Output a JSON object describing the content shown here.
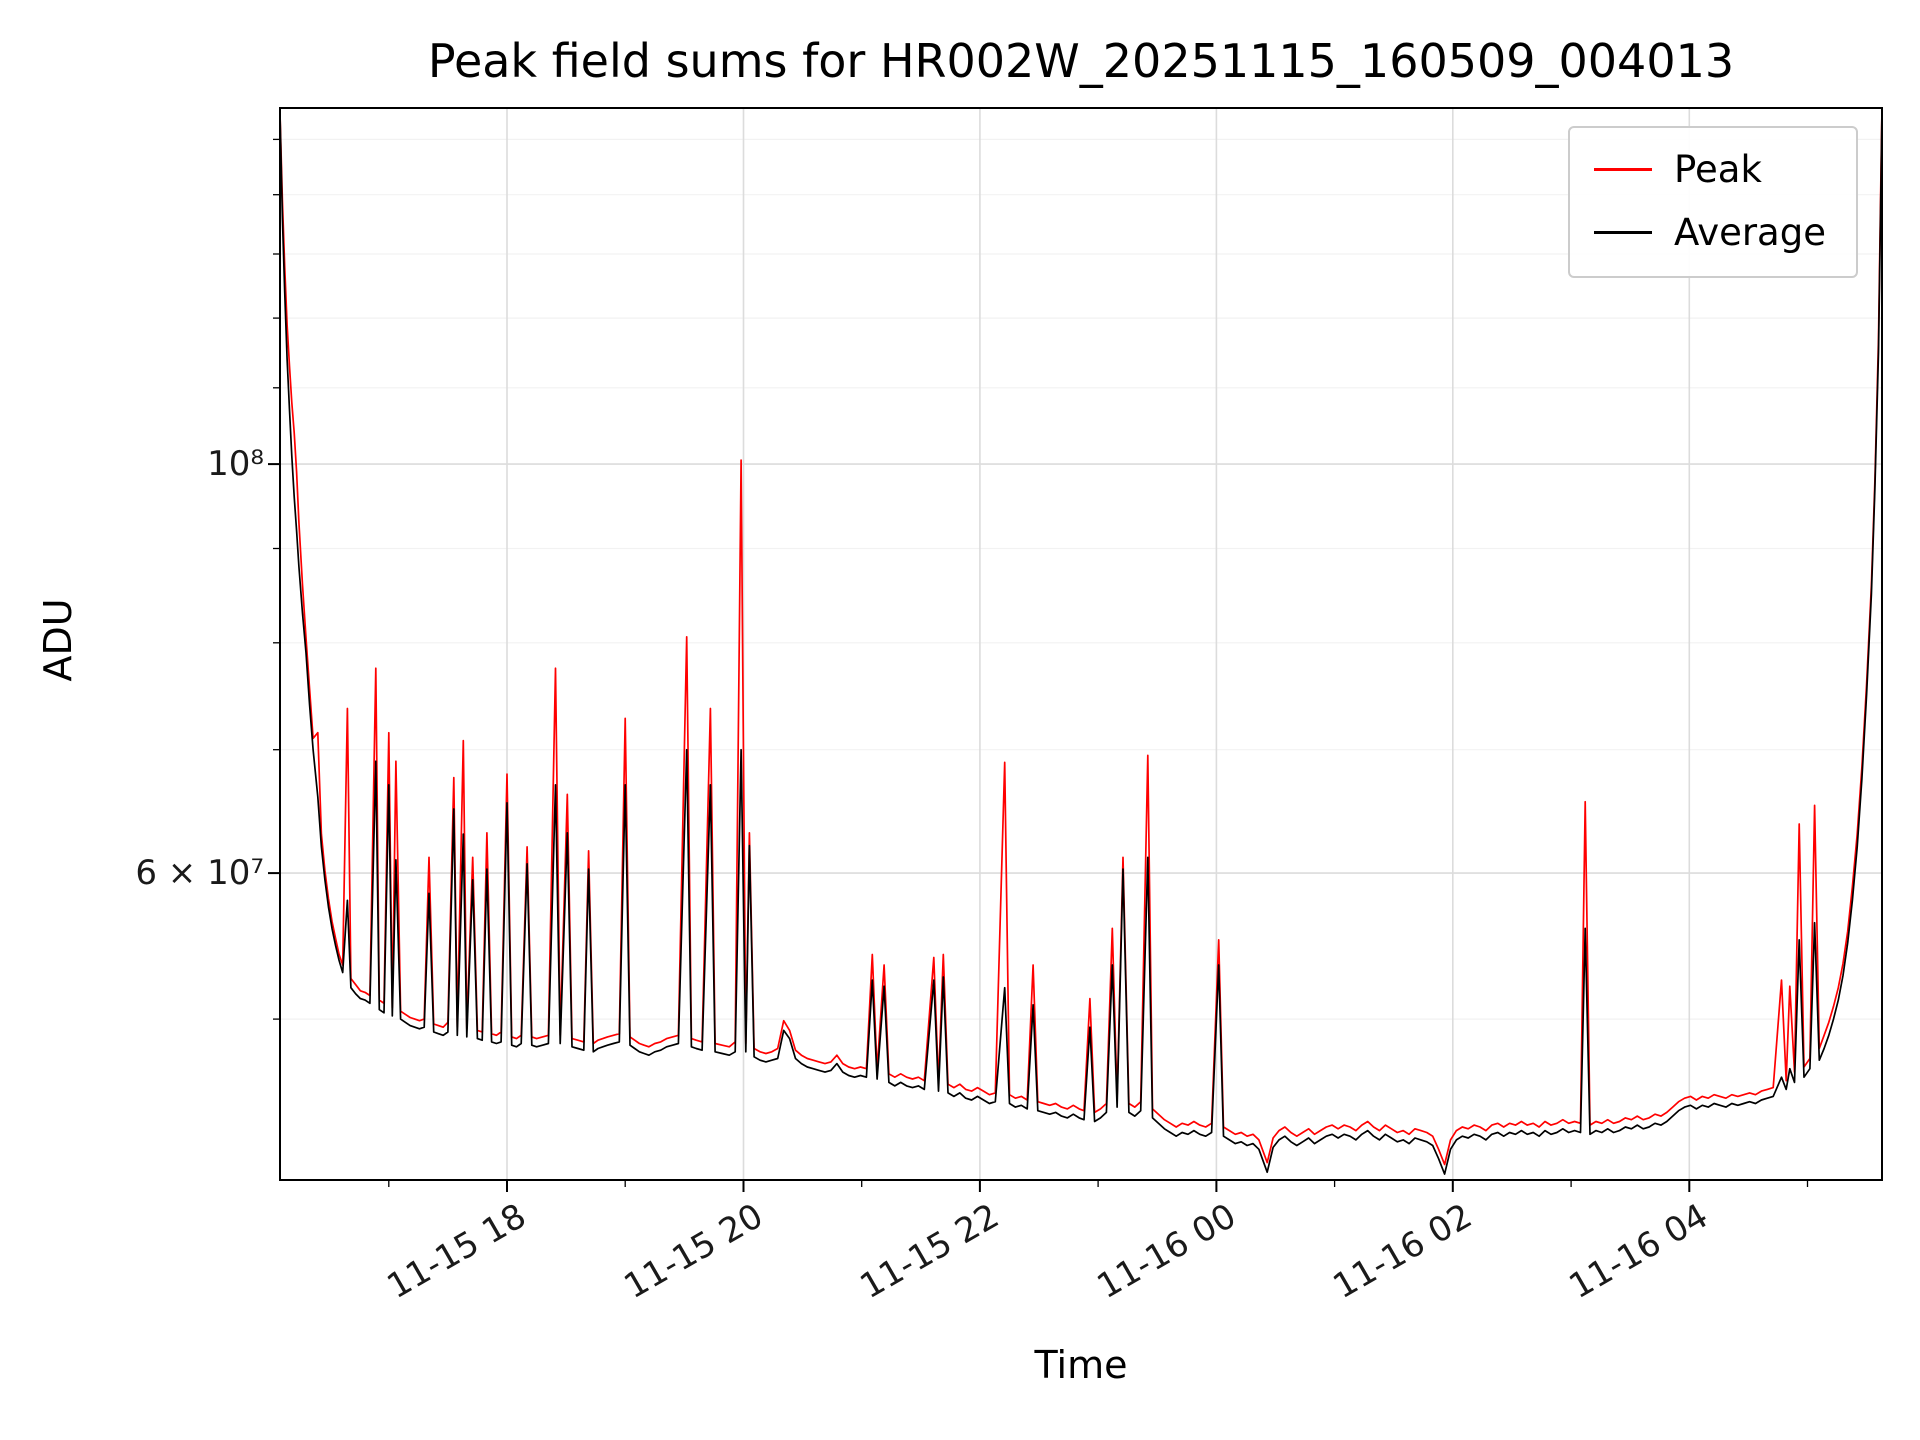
{
  "page": {
    "background": "#ffffff"
  },
  "chart_data": {
    "type": "line",
    "title": "Peak field sums for HR002W_20251115_160509_004013",
    "xlabel": "Time",
    "ylabel": "ADU",
    "yscale": "log",
    "grid": true,
    "legend_position": "upper right",
    "x_unit": "hours since 2025-11-15 00:00",
    "value_unit_scale": 1000000,
    "value_unit": "ADU (series values are in units of 1e6 ADU)",
    "xlim": [
      16.08,
      29.63
    ],
    "ylim": [
      40900000,
      156000000
    ],
    "xticks": [
      {
        "value": 18,
        "label": "11-15 18"
      },
      {
        "value": 20,
        "label": "11-15 20"
      },
      {
        "value": 22,
        "label": "11-15 22"
      },
      {
        "value": 24,
        "label": "11-16 00"
      },
      {
        "value": 26,
        "label": "11-16 02"
      },
      {
        "value": 28,
        "label": "11-16 04"
      }
    ],
    "yticks": [
      {
        "value": 100000000,
        "label": "10⁸"
      },
      {
        "value": 60000000,
        "label": "6 × 10⁷"
      }
    ],
    "xticks_minor": [
      17,
      19,
      21,
      23,
      25,
      27,
      29
    ],
    "yticks_minor": [
      50000000,
      70000000,
      80000000,
      90000000,
      110000000,
      120000000,
      130000000,
      140000000,
      150000000
    ],
    "legend": [
      {
        "label": "Peak",
        "color": "#ff0000"
      },
      {
        "label": "Average",
        "color": "#000000"
      }
    ],
    "x": [
      16.08,
      16.1,
      16.12,
      16.14,
      16.16,
      16.18,
      16.2,
      16.22,
      16.24,
      16.27,
      16.3,
      16.33,
      16.36,
      16.4,
      16.43,
      16.46,
      16.49,
      16.52,
      16.55,
      16.58,
      16.61,
      16.65,
      16.68,
      16.72,
      16.76,
      16.8,
      16.84,
      16.89,
      16.92,
      16.96,
      17.0,
      17.03,
      17.06,
      17.1,
      17.14,
      17.18,
      17.22,
      17.26,
      17.3,
      17.34,
      17.38,
      17.42,
      17.46,
      17.5,
      17.55,
      17.58,
      17.63,
      17.66,
      17.71,
      17.75,
      17.79,
      17.83,
      17.87,
      17.91,
      17.95,
      18.0,
      18.04,
      18.08,
      18.12,
      18.17,
      18.21,
      18.25,
      18.3,
      18.35,
      18.41,
      18.45,
      18.51,
      18.55,
      18.6,
      18.65,
      18.69,
      18.73,
      18.77,
      18.81,
      18.85,
      18.9,
      18.95,
      19.0,
      19.04,
      19.08,
      19.12,
      19.16,
      19.2,
      19.25,
      19.3,
      19.35,
      19.4,
      19.45,
      19.52,
      19.56,
      19.6,
      19.65,
      19.72,
      19.76,
      19.82,
      19.88,
      19.93,
      19.98,
      20.02,
      20.05,
      20.09,
      20.14,
      20.19,
      20.24,
      20.29,
      20.34,
      20.39,
      20.44,
      20.49,
      20.54,
      20.59,
      20.64,
      20.69,
      20.74,
      20.79,
      20.84,
      20.89,
      20.94,
      20.99,
      21.04,
      21.09,
      21.13,
      21.19,
      21.23,
      21.28,
      21.33,
      21.38,
      21.43,
      21.48,
      21.53,
      21.61,
      21.65,
      21.69,
      21.73,
      21.78,
      21.83,
      21.88,
      21.93,
      21.98,
      22.03,
      22.08,
      22.13,
      22.21,
      22.25,
      22.3,
      22.35,
      22.4,
      22.45,
      22.49,
      22.54,
      22.59,
      22.64,
      22.69,
      22.74,
      22.79,
      22.84,
      22.88,
      22.93,
      22.97,
      23.02,
      23.07,
      23.12,
      23.16,
      23.21,
      23.26,
      23.31,
      23.36,
      23.42,
      23.46,
      23.51,
      23.56,
      23.61,
      23.66,
      23.71,
      23.76,
      23.81,
      23.86,
      23.91,
      23.96,
      24.02,
      24.06,
      24.11,
      24.16,
      24.21,
      24.26,
      24.31,
      24.36,
      24.43,
      24.48,
      24.53,
      24.58,
      24.63,
      24.68,
      24.73,
      24.78,
      24.83,
      24.88,
      24.93,
      24.98,
      25.03,
      25.08,
      25.13,
      25.18,
      25.23,
      25.28,
      25.33,
      25.38,
      25.43,
      25.48,
      25.53,
      25.58,
      25.63,
      25.68,
      25.73,
      25.78,
      25.83,
      25.88,
      25.93,
      25.98,
      26.03,
      26.08,
      26.13,
      26.18,
      26.23,
      26.28,
      26.33,
      26.38,
      26.43,
      26.48,
      26.53,
      26.58,
      26.63,
      26.68,
      26.73,
      26.78,
      26.83,
      26.88,
      26.93,
      26.98,
      27.03,
      27.08,
      27.12,
      27.16,
      27.21,
      27.26,
      27.31,
      27.36,
      27.41,
      27.46,
      27.51,
      27.56,
      27.61,
      27.66,
      27.71,
      27.76,
      27.81,
      27.86,
      27.91,
      27.96,
      28.01,
      28.06,
      28.11,
      28.16,
      28.21,
      28.26,
      28.31,
      28.36,
      28.41,
      28.46,
      28.51,
      28.56,
      28.61,
      28.66,
      28.71,
      28.78,
      28.82,
      28.85,
      28.89,
      28.93,
      28.97,
      29.02,
      29.06,
      29.1,
      29.14,
      29.18,
      29.22,
      29.26,
      29.3,
      29.34,
      29.38,
      29.42,
      29.46,
      29.5,
      29.54,
      29.57,
      29.6,
      29.62,
      29.63
    ],
    "series": [
      {
        "name": "Peak",
        "color": "#ff0000",
        "values": [
          155,
          139,
          128,
          119,
          113,
          108,
          104,
          99,
          93,
          86,
          80.5,
          75.5,
          71,
          71.5,
          63,
          60.2,
          58.1,
          56.5,
          55.3,
          54.2,
          53.5,
          73.7,
          52.6,
          52.2,
          51.8,
          51.7,
          51.5,
          77.5,
          51.2,
          51,
          71.5,
          50.7,
          69,
          50.5,
          50.3,
          50.1,
          50,
          49.9,
          50,
          61.2,
          49.7,
          49.6,
          49.5,
          49.8,
          67.6,
          49.5,
          70.8,
          49.4,
          61.2,
          49.3,
          49.2,
          63.1,
          49.1,
          49,
          49.2,
          67.9,
          48.9,
          48.8,
          49,
          62,
          48.9,
          48.8,
          48.9,
          49,
          77.5,
          49,
          66.2,
          48.8,
          48.7,
          48.6,
          61.7,
          48.5,
          48.7,
          48.8,
          48.9,
          49,
          49.1,
          72.8,
          48.9,
          48.7,
          48.5,
          48.4,
          48.3,
          48.5,
          48.6,
          48.8,
          48.9,
          49,
          80.6,
          48.8,
          48.7,
          48.6,
          73.7,
          48.5,
          48.4,
          48.3,
          48.6,
          100.5,
          48.5,
          63.1,
          48.2,
          48,
          47.9,
          48,
          48.2,
          49.9,
          49.3,
          48.1,
          47.8,
          47.6,
          47.5,
          47.4,
          47.3,
          47.4,
          47.8,
          47.3,
          47.1,
          47,
          47.1,
          47,
          54.2,
          46.9,
          53.5,
          46.7,
          46.5,
          46.7,
          46.5,
          46.4,
          46.5,
          46.3,
          54,
          46.2,
          54.2,
          46.1,
          45.9,
          46.1,
          45.8,
          45.7,
          45.9,
          45.7,
          45.5,
          45.6,
          68.9,
          45.5,
          45.3,
          45.4,
          45.2,
          53.5,
          45.1,
          45,
          44.9,
          45,
          44.8,
          44.7,
          44.9,
          44.7,
          44.6,
          51.3,
          44.5,
          44.7,
          45,
          56,
          45.3,
          61.2,
          45,
          44.8,
          45.1,
          69.5,
          44.7,
          44.4,
          44.1,
          43.9,
          43.7,
          43.9,
          43.8,
          44,
          43.8,
          43.7,
          43.9,
          55.2,
          43.7,
          43.5,
          43.3,
          43.4,
          43.2,
          43.3,
          43,
          41.8,
          43.1,
          43.5,
          43.7,
          43.4,
          43.2,
          43.4,
          43.6,
          43.3,
          43.5,
          43.7,
          43.8,
          43.6,
          43.8,
          43.7,
          43.5,
          43.8,
          44,
          43.7,
          43.5,
          43.8,
          43.6,
          43.4,
          43.5,
          43.3,
          43.6,
          43.5,
          43.4,
          43.2,
          42.5,
          41.7,
          43,
          43.5,
          43.7,
          43.6,
          43.8,
          43.7,
          43.5,
          43.8,
          43.9,
          43.7,
          43.9,
          43.8,
          44,
          43.8,
          43.9,
          43.7,
          44,
          43.8,
          43.9,
          44.1,
          43.9,
          44,
          43.9,
          65.6,
          43.8,
          44,
          43.9,
          44.1,
          43.9,
          44,
          44.2,
          44.1,
          44.3,
          44.1,
          44.2,
          44.4,
          44.3,
          44.5,
          44.8,
          45.1,
          45.3,
          45.4,
          45.2,
          45.4,
          45.3,
          45.5,
          45.4,
          45.3,
          45.5,
          45.4,
          45.5,
          45.6,
          45.5,
          45.7,
          45.8,
          45.9,
          52.5,
          46.3,
          52.1,
          46.8,
          63.8,
          47.1,
          47.6,
          65.3,
          48.2,
          49,
          49.8,
          50.8,
          52,
          53.6,
          55.8,
          59,
          63,
          68.5,
          76,
          86,
          98,
          117,
          142,
          156
        ]
      },
      {
        "name": "Average",
        "color": "#000000",
        "values": [
          155,
          136,
          124,
          114,
          107,
          101,
          96,
          92,
          88,
          83,
          79,
          74,
          70,
          66,
          62,
          59.5,
          57.5,
          56,
          54.8,
          53.8,
          53,
          58,
          52,
          51.6,
          51.3,
          51.2,
          51,
          69,
          50.6,
          50.4,
          67,
          50.2,
          61,
          50,
          49.8,
          49.6,
          49.5,
          49.4,
          49.5,
          58.5,
          49.2,
          49.1,
          49,
          49.2,
          65,
          49,
          63,
          48.9,
          59.5,
          48.8,
          48.7,
          60.3,
          48.6,
          48.5,
          48.6,
          65.5,
          48.4,
          48.3,
          48.5,
          60.7,
          48.4,
          48.3,
          48.4,
          48.5,
          67,
          48.5,
          63.1,
          48.3,
          48.2,
          48.1,
          60.3,
          48,
          48.2,
          48.3,
          48.4,
          48.5,
          48.6,
          67,
          48.4,
          48.2,
          48,
          47.9,
          47.8,
          48,
          48.1,
          48.3,
          48.4,
          48.5,
          70,
          48.3,
          48.2,
          48.1,
          67,
          48,
          47.9,
          47.8,
          48,
          70,
          48,
          62.1,
          47.7,
          47.5,
          47.4,
          47.5,
          47.6,
          49.3,
          48.8,
          47.6,
          47.3,
          47.1,
          47,
          46.9,
          46.8,
          46.9,
          47.3,
          46.8,
          46.6,
          46.5,
          46.6,
          46.5,
          52.5,
          46.4,
          52.1,
          46.2,
          46,
          46.2,
          46,
          45.9,
          46,
          45.8,
          52.5,
          45.7,
          52.7,
          45.6,
          45.4,
          45.6,
          45.3,
          45.2,
          45.4,
          45.2,
          45,
          45.1,
          52,
          45,
          44.8,
          44.9,
          44.7,
          50.9,
          44.6,
          44.5,
          44.4,
          44.5,
          44.3,
          44.2,
          44.4,
          44.2,
          44.1,
          49.5,
          44,
          44.2,
          44.5,
          53.5,
          44.8,
          60.3,
          44.5,
          44.3,
          44.6,
          61.2,
          44.2,
          43.9,
          43.6,
          43.4,
          43.2,
          43.4,
          43.3,
          43.5,
          43.3,
          43.2,
          43.4,
          53.5,
          43.2,
          43,
          42.8,
          42.9,
          42.7,
          42.8,
          42.5,
          41.3,
          42.6,
          43,
          43.2,
          42.9,
          42.7,
          42.9,
          43.1,
          42.8,
          43,
          43.2,
          43.3,
          43.1,
          43.3,
          43.2,
          43,
          43.3,
          43.5,
          43.2,
          43,
          43.3,
          43.1,
          42.9,
          43,
          42.8,
          43.1,
          43,
          42.9,
          42.7,
          42,
          41.2,
          42.5,
          43,
          43.2,
          43.1,
          43.3,
          43.2,
          43,
          43.3,
          43.4,
          43.2,
          43.4,
          43.3,
          43.5,
          43.3,
          43.4,
          43.2,
          43.5,
          43.3,
          43.4,
          43.6,
          43.4,
          43.5,
          43.4,
          56,
          43.3,
          43.5,
          43.4,
          43.6,
          43.4,
          43.5,
          43.7,
          43.6,
          43.8,
          43.6,
          43.7,
          43.9,
          43.8,
          44,
          44.3,
          44.6,
          44.8,
          44.9,
          44.7,
          44.9,
          44.8,
          45,
          44.9,
          44.8,
          45,
          44.9,
          45,
          45.1,
          45,
          45.2,
          45.3,
          45.4,
          46.5,
          45.8,
          47,
          46.2,
          55.2,
          46.5,
          47,
          56.4,
          47.5,
          48.2,
          49,
          50,
          51.2,
          52.8,
          55,
          58,
          62,
          67.5,
          75,
          85,
          97,
          115,
          140,
          156
        ]
      }
    ]
  }
}
